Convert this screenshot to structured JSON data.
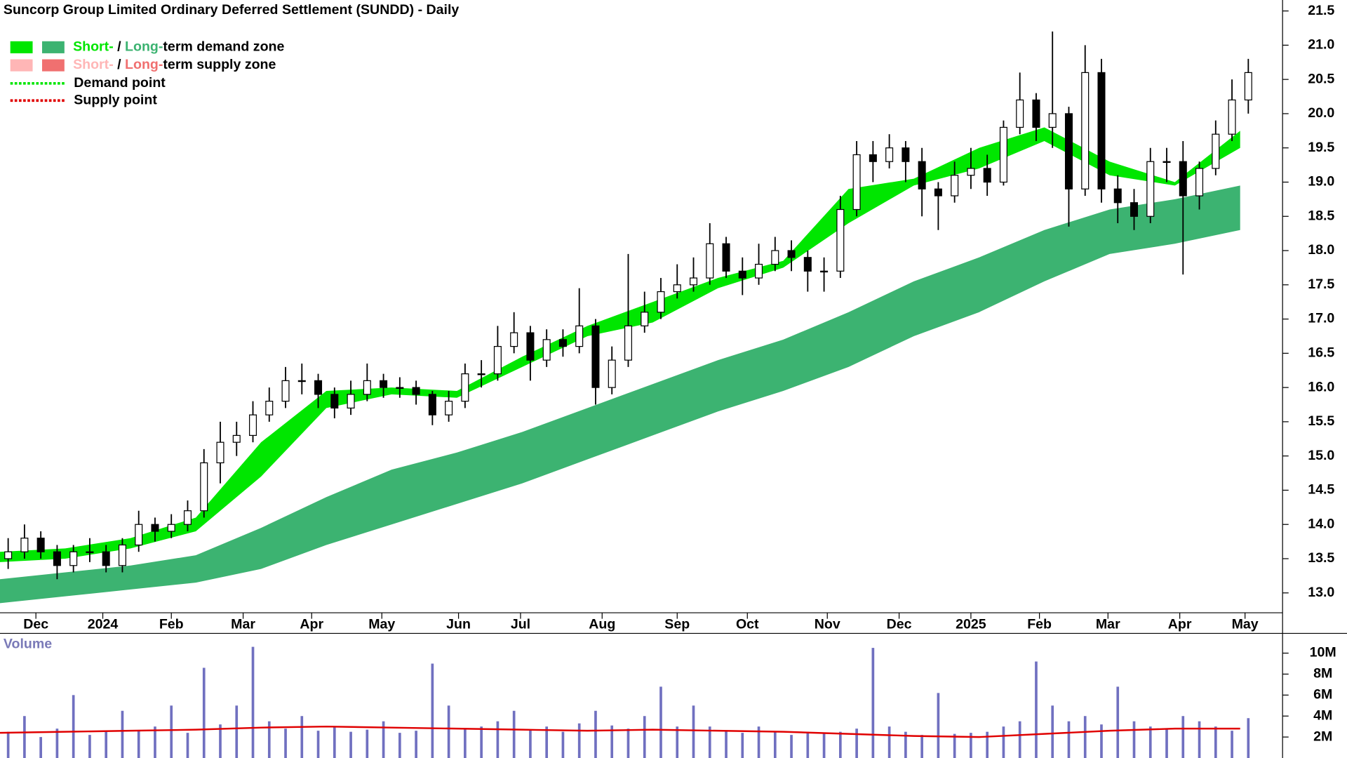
{
  "chart_data": [
    {
      "type": "candlestick",
      "title": "Suncorp Group Limited Ordinary Deferred Settlement (SUNDD) - Daily",
      "legend": [
        {
          "short": "Short-",
          "sep": " / ",
          "long": "Long-",
          "rest": "term demand zone",
          "short_color": "#00e600",
          "long_color": "#3cb371"
        },
        {
          "short": "Short-",
          "sep": " / ",
          "long": "Long-",
          "rest": "term supply zone",
          "short_color": "#ffb6b6",
          "long_color": "#f07070"
        },
        {
          "label": "Demand point",
          "color": "#00e600"
        },
        {
          "label": "Supply point",
          "color": "#e00000"
        }
      ],
      "xlim": [
        0,
        78.6
      ],
      "xticks": [
        {
          "value": 2.2,
          "label": "Dec"
        },
        {
          "value": 6.3,
          "label": "2024"
        },
        {
          "value": 10.5,
          "label": "Feb"
        },
        {
          "value": 14.9,
          "label": "Mar"
        },
        {
          "value": 19.1,
          "label": "Apr"
        },
        {
          "value": 23.4,
          "label": "May"
        },
        {
          "value": 28.1,
          "label": "Jun"
        },
        {
          "value": 31.9,
          "label": "Jul"
        },
        {
          "value": 36.9,
          "label": "Aug"
        },
        {
          "value": 41.5,
          "label": "Sep"
        },
        {
          "value": 45.8,
          "label": "Oct"
        },
        {
          "value": 50.7,
          "label": "Nov"
        },
        {
          "value": 55.1,
          "label": "Dec"
        },
        {
          "value": 59.5,
          "label": "2025"
        },
        {
          "value": 63.7,
          "label": "Feb"
        },
        {
          "value": 67.9,
          "label": "Mar"
        },
        {
          "value": 72.3,
          "label": "Apr"
        },
        {
          "value": 76.3,
          "label": "May"
        }
      ],
      "ylim": [
        12.71,
        21.66
      ],
      "yticks": [
        {
          "value": 13,
          "label": "13.0"
        },
        13.5,
        {
          "value": 14,
          "label": "14.0"
        },
        14.5,
        {
          "value": 15,
          "label": "15.0"
        },
        15.5,
        {
          "value": 16,
          "label": "16.0"
        },
        16.5,
        {
          "value": 17,
          "label": "17.0"
        },
        17.5,
        {
          "value": 18,
          "label": "18.0"
        },
        18.5,
        {
          "value": 19,
          "label": "19.0"
        },
        19.5,
        {
          "value": 20,
          "label": "20.0"
        },
        20.5,
        {
          "value": 21,
          "label": "21.0"
        },
        21.5
      ],
      "x": [
        0.5,
        1.5,
        2.5,
        3.5,
        4.5,
        5.5,
        6.5,
        7.5,
        8.5,
        9.5,
        10.5,
        11.5,
        12.5,
        13.5,
        14.5,
        15.5,
        16.5,
        17.5,
        18.5,
        19.5,
        20.5,
        21.5,
        22.5,
        23.5,
        24.5,
        25.5,
        26.5,
        27.5,
        28.5,
        29.5,
        30.5,
        31.5,
        32.5,
        33.5,
        34.5,
        35.5,
        36.5,
        37.5,
        38.5,
        39.5,
        40.5,
        41.5,
        42.5,
        43.5,
        44.5,
        45.5,
        46.5,
        47.5,
        48.5,
        49.5,
        50.5,
        51.5,
        52.5,
        53.5,
        54.5,
        55.5,
        56.5,
        57.5,
        58.5,
        59.5,
        60.5,
        61.5,
        62.5,
        63.5,
        64.5,
        65.5,
        66.5,
        67.5,
        68.5,
        69.5,
        70.5,
        71.5,
        72.5,
        73.5,
        74.5,
        75.5,
        76.5
      ],
      "open": [
        13.5,
        13.6,
        13.8,
        13.6,
        13.4,
        13.6,
        13.6,
        13.4,
        13.7,
        14.0,
        13.9,
        14.0,
        14.2,
        14.9,
        15.2,
        15.3,
        15.6,
        15.8,
        16.1,
        16.1,
        15.9,
        15.7,
        15.9,
        16.1,
        16.0,
        16.0,
        15.9,
        15.6,
        15.8,
        16.2,
        16.2,
        16.6,
        16.8,
        16.4,
        16.7,
        16.6,
        16.9,
        16.0,
        16.4,
        16.9,
        17.1,
        17.4,
        17.5,
        17.6,
        18.1,
        17.7,
        17.6,
        17.8,
        18.0,
        17.9,
        17.7,
        17.7,
        18.6,
        19.4,
        19.3,
        19.5,
        19.3,
        18.9,
        18.8,
        19.1,
        19.2,
        19.0,
        19.8,
        20.2,
        19.8,
        20.0,
        18.9,
        20.6,
        18.9,
        18.7,
        18.5,
        19.3,
        19.3,
        18.8,
        19.2,
        19.7,
        20.2
      ],
      "high": [
        13.8,
        14.0,
        13.9,
        13.7,
        13.7,
        13.8,
        13.7,
        13.8,
        14.2,
        14.1,
        14.15,
        14.35,
        15.1,
        15.5,
        15.5,
        15.8,
        16.0,
        16.3,
        16.35,
        16.2,
        16.0,
        16.1,
        16.35,
        16.2,
        16.15,
        16.1,
        15.95,
        15.95,
        16.35,
        16.4,
        16.9,
        17.1,
        16.9,
        16.85,
        16.85,
        17.45,
        17.0,
        16.6,
        17.95,
        17.4,
        17.6,
        17.8,
        17.9,
        18.4,
        18.2,
        17.9,
        18.1,
        18.2,
        18.15,
        18.0,
        17.9,
        18.8,
        19.6,
        19.6,
        19.7,
        19.6,
        19.5,
        19.0,
        19.3,
        19.5,
        19.4,
        19.9,
        20.6,
        20.3,
        21.2,
        20.1,
        21.0,
        20.8,
        19.1,
        18.9,
        19.5,
        19.5,
        19.6,
        19.3,
        19.9,
        20.5,
        20.8
      ],
      "low": [
        13.35,
        13.5,
        13.5,
        13.2,
        13.3,
        13.45,
        13.3,
        13.3,
        13.6,
        13.75,
        13.8,
        13.9,
        14.1,
        14.6,
        15.0,
        15.2,
        15.5,
        15.7,
        15.9,
        15.7,
        15.55,
        15.6,
        15.8,
        15.85,
        15.85,
        15.75,
        15.45,
        15.5,
        15.7,
        16.0,
        16.1,
        16.5,
        16.1,
        16.3,
        16.45,
        16.5,
        15.75,
        15.9,
        16.3,
        16.8,
        17.0,
        17.3,
        17.4,
        17.5,
        17.6,
        17.35,
        17.5,
        17.7,
        17.7,
        17.4,
        17.4,
        17.6,
        18.5,
        19.0,
        19.2,
        19.0,
        18.5,
        18.3,
        18.7,
        18.9,
        18.8,
        18.95,
        19.7,
        19.6,
        19.5,
        18.35,
        18.8,
        18.7,
        18.4,
        18.3,
        18.4,
        19.0,
        17.65,
        18.6,
        19.1,
        19.6,
        20.0
      ],
      "close": [
        13.6,
        13.8,
        13.6,
        13.4,
        13.6,
        13.6,
        13.4,
        13.7,
        14.0,
        13.9,
        14.0,
        14.2,
        14.9,
        15.2,
        15.3,
        15.6,
        15.8,
        16.1,
        16.1,
        15.9,
        15.7,
        15.9,
        16.1,
        16.0,
        16.0,
        15.9,
        15.6,
        15.8,
        16.2,
        16.2,
        16.6,
        16.8,
        16.4,
        16.7,
        16.6,
        16.9,
        16.0,
        16.4,
        16.9,
        17.1,
        17.4,
        17.5,
        17.6,
        18.1,
        17.7,
        17.6,
        17.8,
        18.0,
        17.9,
        17.7,
        17.7,
        18.6,
        19.4,
        19.3,
        19.5,
        19.3,
        18.9,
        18.8,
        19.1,
        19.2,
        19.0,
        19.8,
        20.2,
        19.8,
        20.0,
        18.9,
        20.6,
        18.9,
        18.7,
        18.5,
        19.3,
        19.3,
        18.8,
        19.2,
        19.7,
        20.2,
        20.6
      ],
      "zones": {
        "x": [
          0,
          4,
          8,
          12,
          16,
          20,
          24,
          28,
          32,
          36,
          40,
          44,
          48,
          52,
          56,
          60,
          64,
          68,
          72,
          76
        ],
        "long_upper": [
          13.2,
          13.3,
          13.4,
          13.55,
          13.95,
          14.4,
          14.8,
          15.05,
          15.35,
          15.7,
          16.05,
          16.4,
          16.7,
          17.1,
          17.55,
          17.9,
          18.3,
          18.6,
          18.75,
          18.95
        ],
        "long_lower": [
          12.85,
          12.95,
          13.05,
          13.15,
          13.35,
          13.7,
          14.0,
          14.3,
          14.6,
          14.95,
          15.3,
          15.65,
          15.95,
          16.3,
          16.75,
          17.1,
          17.55,
          17.95,
          18.1,
          18.3
        ],
        "short_upper": [
          13.6,
          13.65,
          13.8,
          14.1,
          15.2,
          15.95,
          16.0,
          15.95,
          16.45,
          16.9,
          17.25,
          17.6,
          17.85,
          18.9,
          19.05,
          19.5,
          19.8,
          19.3,
          19.0,
          19.75
        ],
        "short_lower": [
          13.45,
          13.5,
          13.65,
          13.9,
          14.7,
          15.7,
          15.9,
          15.85,
          16.3,
          16.75,
          16.95,
          17.45,
          17.75,
          18.4,
          18.95,
          19.2,
          19.6,
          19.1,
          18.95,
          19.5
        ]
      }
    },
    {
      "type": "bar",
      "title": "Volume",
      "color": "#7070c0",
      "xlim": [
        0,
        78.6
      ],
      "ylim": [
        0,
        11.8
      ],
      "yticks": [
        {
          "value": 2,
          "label": "2M"
        },
        {
          "value": 4,
          "label": "4M"
        },
        {
          "value": 6,
          "label": "6M"
        },
        {
          "value": 8,
          "label": "8M"
        },
        {
          "value": 10,
          "label": "10M"
        }
      ],
      "x": [
        0.5,
        1.5,
        2.5,
        3.5,
        4.5,
        5.5,
        6.5,
        7.5,
        8.5,
        9.5,
        10.5,
        11.5,
        12.5,
        13.5,
        14.5,
        15.5,
        16.5,
        17.5,
        18.5,
        19.5,
        20.5,
        21.5,
        22.5,
        23.5,
        24.5,
        25.5,
        26.5,
        27.5,
        28.5,
        29.5,
        30.5,
        31.5,
        32.5,
        33.5,
        34.5,
        35.5,
        36.5,
        37.5,
        38.5,
        39.5,
        40.5,
        41.5,
        42.5,
        43.5,
        44.5,
        45.5,
        46.5,
        47.5,
        48.5,
        49.5,
        50.5,
        51.5,
        52.5,
        53.5,
        54.5,
        55.5,
        56.5,
        57.5,
        58.5,
        59.5,
        60.5,
        61.5,
        62.5,
        63.5,
        64.5,
        65.5,
        66.5,
        67.5,
        68.5,
        69.5,
        70.5,
        71.5,
        72.5,
        73.5,
        74.5,
        75.5,
        76.5
      ],
      "values": [
        2.5,
        4,
        2,
        2.8,
        6,
        2.2,
        2.5,
        4.5,
        2.6,
        3,
        5,
        2.4,
        8.6,
        3.2,
        5,
        10.6,
        3.5,
        2.8,
        4,
        2.6,
        3,
        2.5,
        2.7,
        3.5,
        2.4,
        2.6,
        9,
        5,
        2.8,
        3,
        3.5,
        4.5,
        2.7,
        3,
        2.5,
        3.3,
        4.5,
        3.1,
        2.8,
        4,
        6.8,
        3,
        5,
        3,
        2.6,
        2.4,
        3,
        2.5,
        2.2,
        2.5,
        2.4,
        2.5,
        2.8,
        10.5,
        3,
        2.5,
        2.2,
        6.2,
        2.3,
        2.4,
        2.5,
        3,
        3.5,
        9.2,
        5,
        3.5,
        4,
        3.2,
        6.8,
        3.5,
        3,
        2.8,
        4,
        3.5,
        3,
        2.6,
        3.8
      ],
      "ma": {
        "color": "#e00000",
        "x": [
          0,
          4,
          8,
          12,
          16,
          20,
          24,
          28,
          32,
          36,
          40,
          44,
          48,
          52,
          56,
          60,
          64,
          68,
          72,
          76
        ],
        "values": [
          2.4,
          2.5,
          2.6,
          2.7,
          2.9,
          3.0,
          2.9,
          2.8,
          2.7,
          2.6,
          2.7,
          2.6,
          2.5,
          2.3,
          2.1,
          2.0,
          2.3,
          2.6,
          2.8,
          2.8
        ]
      }
    }
  ]
}
